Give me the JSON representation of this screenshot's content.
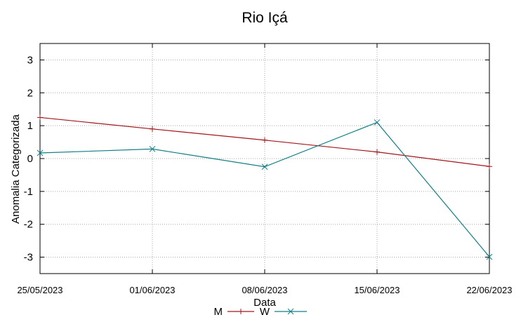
{
  "chart_data": {
    "type": "line",
    "title": "Rio Içá",
    "xlabel": "Data",
    "ylabel": "Anomalia Categorizada",
    "x": [
      "25/05/2023",
      "01/06/2023",
      "08/06/2023",
      "15/06/2023",
      "22/06/2023"
    ],
    "ylim": [
      -3.5,
      3.5
    ],
    "yticks": [
      3,
      2,
      1,
      0,
      -1,
      -2,
      -3
    ],
    "grid": true,
    "legend_position": "bottom-center",
    "series": [
      {
        "name": "M",
        "color": "#a0181c",
        "marker": "+",
        "values": [
          1.25,
          0.9,
          0.56,
          0.2,
          -0.24
        ]
      },
      {
        "name": "W",
        "color": "#117f85",
        "marker": "x",
        "values": [
          0.17,
          0.29,
          -0.25,
          1.1,
          -2.99
        ]
      }
    ]
  }
}
